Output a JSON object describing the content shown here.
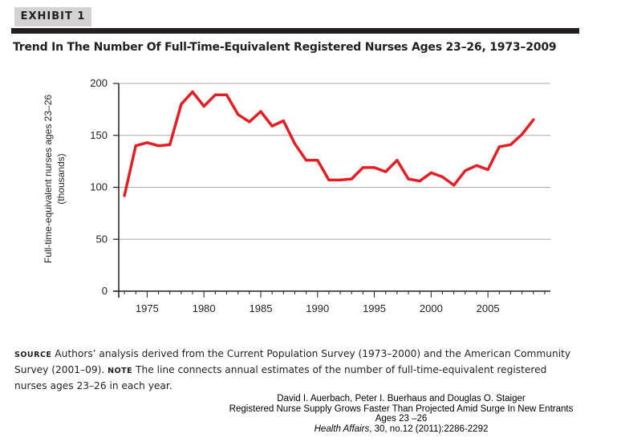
{
  "exhibit": {
    "label": "EXHIBIT 1",
    "title": "Trend In The Number Of Full-Time-Equivalent Registered Nurses Ages 23–26, 1973–2009"
  },
  "chart_data": {
    "type": "line",
    "title": "Trend In The Number Of Full-Time-Equivalent Registered Nurses Ages 23–26, 1973–2009",
    "ylabel_line1": "Full-time-equivalent nurses ages 23–26",
    "ylabel_line2": "(thousands)",
    "xlabel": "",
    "ylim": [
      0,
      200
    ],
    "xlim": [
      1972.5,
      2010.5
    ],
    "grid": true,
    "line_color": "#e31e24",
    "yticks": [
      0,
      50,
      100,
      150,
      200
    ],
    "xticks": [
      1975,
      1980,
      1985,
      1990,
      1995,
      2000,
      2005
    ],
    "series": [
      {
        "x": [
          1973,
          1974,
          1975,
          1976,
          1977,
          1978,
          1979,
          1980,
          1981,
          1982,
          1983,
          1984,
          1985,
          1986,
          1987,
          1988,
          1989,
          1990,
          1991,
          1992,
          1993,
          1994,
          1995,
          1996,
          1997,
          1998,
          1999,
          2000,
          2001,
          2002,
          2003,
          2004,
          2005,
          2006,
          2007,
          2008,
          2009
        ],
        "values": [
          92,
          140,
          143,
          140,
          141,
          180,
          192,
          178,
          189,
          189,
          170,
          163,
          173,
          159,
          164,
          142,
          126,
          126,
          107,
          107,
          108,
          119,
          119,
          115,
          126,
          108,
          106,
          114,
          110,
          102,
          116,
          121,
          117,
          139,
          141,
          151,
          165
        ]
      }
    ]
  },
  "notes": {
    "source_label": "SOURCE",
    "source_text": " Authors’ analysis derived from the Current Population Survey (1973–2000) and the American Community Survey (2001–09).",
    "note_label": "NOTE",
    "note_text": " The line connects annual estimates of the number of full-time-equivalent registered nurses ages 23–26 in each year."
  },
  "citation": {
    "authors": "David I. Auerbach, Peter I. Buerhaus and Douglas O. Staiger",
    "article": "Registered Nurse Supply Grows Faster Than Projected Amid Surge In New Entrants",
    "article2": "Ages 23 –26",
    "journal": "Health Affairs",
    "details": ", 30, no.12 (2011):2286-2292"
  }
}
